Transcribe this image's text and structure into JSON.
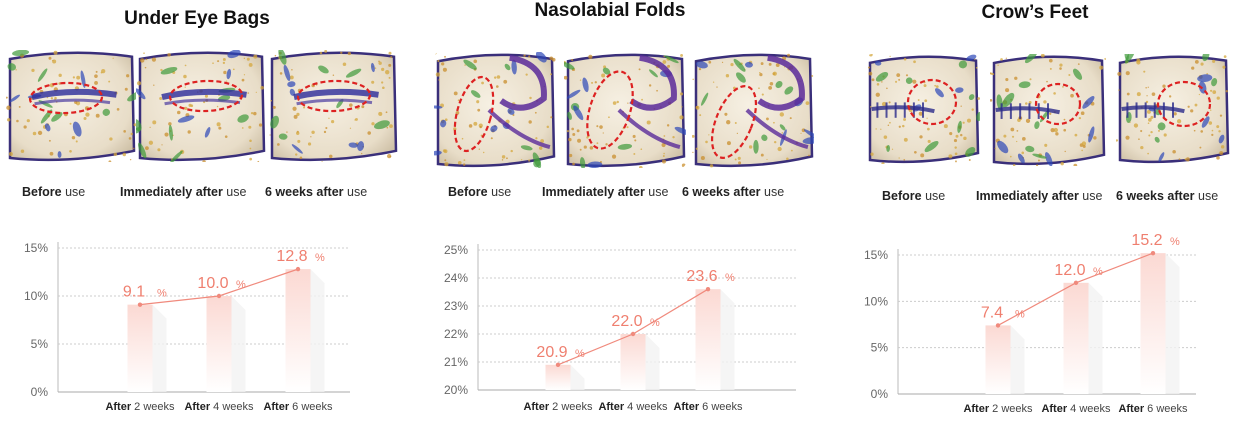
{
  "palette": {
    "bar_top": "#fbd9d3",
    "bar_bottom": "#ffffff",
    "line": "#f08a7d",
    "label": "#ef7f6f",
    "grid": "#cccccc",
    "ellipse": "#dd2222"
  },
  "panels": [
    {
      "title": "Under Eye Bags",
      "captions": [
        {
          "bold": "Before",
          "rest": " use"
        },
        {
          "bold": "Immediately after",
          "rest": " use"
        },
        {
          "bold": "6 weeks after",
          "rest": " use"
        }
      ]
    },
    {
      "title": "Nasolabial Folds",
      "captions": [
        {
          "bold": "Before",
          "rest": " use"
        },
        {
          "bold": "Immediately after",
          "rest": " use"
        },
        {
          "bold": "6 weeks after",
          "rest": " use"
        }
      ]
    },
    {
      "title": "Crow’s Feet",
      "captions": [
        {
          "bold": "Before",
          "rest": " use"
        },
        {
          "bold": "Immediately after",
          "rest": " use"
        },
        {
          "bold": "6 weeks after",
          "rest": " use"
        }
      ]
    }
  ],
  "chart_data": [
    {
      "type": "bar",
      "title": "Under Eye Bags",
      "categories": [
        {
          "bold": "After",
          "rest": " 2 weeks"
        },
        {
          "bold": "After",
          "rest": " 4 weeks"
        },
        {
          "bold": "After",
          "rest": " 6 weeks"
        }
      ],
      "values": [
        9.1,
        10.0,
        12.8
      ],
      "value_labels": [
        "9.1",
        "10.0",
        "12.8"
      ],
      "unit": "%",
      "ylim": [
        0,
        15
      ],
      "yticks": [
        0,
        5,
        10,
        15
      ],
      "ytick_labels": [
        "0%",
        "5%",
        "10%",
        "15%"
      ],
      "overlay": "line",
      "grid": true
    },
    {
      "type": "bar",
      "title": "Nasolabial Folds",
      "categories": [
        {
          "bold": "After",
          "rest": " 2 weeks"
        },
        {
          "bold": "After",
          "rest": " 4 weeks"
        },
        {
          "bold": "After",
          "rest": " 6 weeks"
        }
      ],
      "values": [
        20.9,
        22.0,
        23.6
      ],
      "value_labels": [
        "20.9",
        "22.0",
        "23.6"
      ],
      "unit": "%",
      "ylim": [
        20,
        25
      ],
      "yticks": [
        20,
        21,
        22,
        23,
        24,
        25
      ],
      "ytick_labels": [
        "20%",
        "21%",
        "22%",
        "23%",
        "24%",
        "25%"
      ],
      "overlay": "line",
      "grid": true
    },
    {
      "type": "bar",
      "title": "Crow’s Feet",
      "categories": [
        {
          "bold": "After",
          "rest": " 2 weeks"
        },
        {
          "bold": "After",
          "rest": " 4 weeks"
        },
        {
          "bold": "After",
          "rest": " 6 weeks"
        }
      ],
      "values": [
        7.4,
        12.0,
        15.2
      ],
      "value_labels": [
        "7.4",
        "12.0",
        "15.2"
      ],
      "unit": "%",
      "ylim": [
        0,
        15
      ],
      "yticks": [
        0,
        5,
        10,
        15
      ],
      "ytick_labels": [
        "0%",
        "5%",
        "10%",
        "15%"
      ],
      "overlay": "line",
      "grid": true
    }
  ]
}
